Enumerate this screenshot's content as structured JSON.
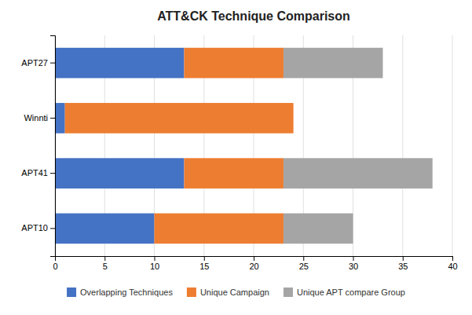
{
  "chart_data": {
    "type": "bar",
    "orientation": "horizontal",
    "stacked": true,
    "title": "ATT&CK Technique Comparison",
    "categories": [
      "APT10",
      "APT41",
      "Winnti",
      "APT27"
    ],
    "series": [
      {
        "name": "Overlapping Techniques",
        "color": "#4472C4",
        "values": [
          10,
          13,
          1,
          13
        ]
      },
      {
        "name": "Unique Campaign",
        "color": "#ED7D31",
        "values": [
          13,
          10,
          23,
          10
        ]
      },
      {
        "name": "Unique APT compare Group",
        "color": "#A5A5A5",
        "values": [
          7,
          15,
          0,
          10
        ]
      }
    ],
    "xlim": [
      0,
      40
    ],
    "xticks": [
      0,
      5,
      10,
      15,
      20,
      25,
      30,
      35,
      40
    ],
    "grid": true,
    "legend": "bottom"
  }
}
